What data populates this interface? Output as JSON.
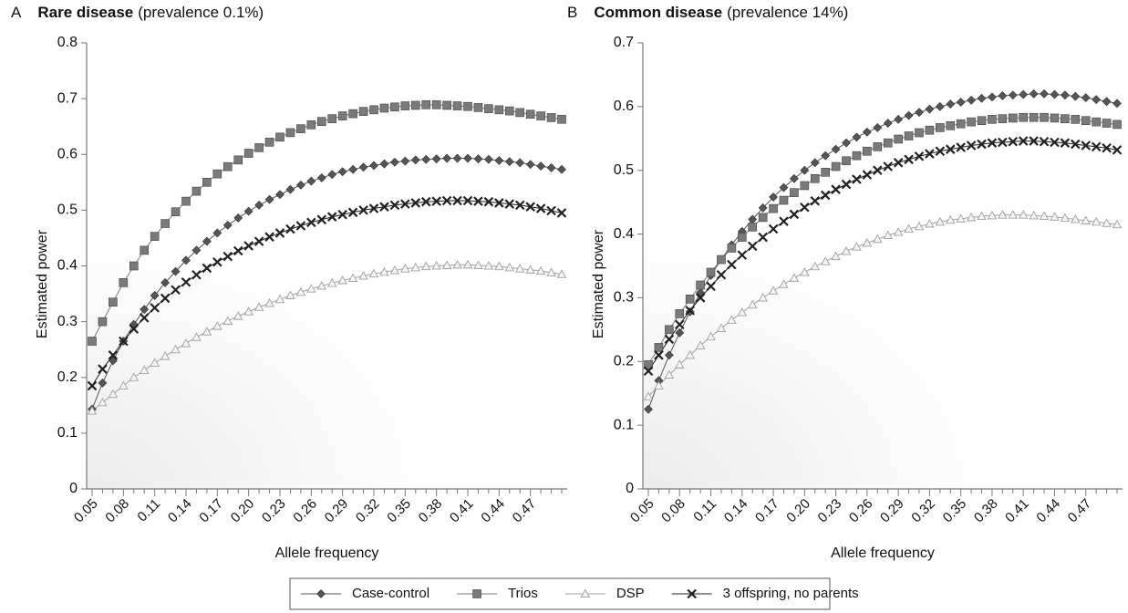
{
  "chart_data": [
    {
      "type": "line",
      "panel": "A",
      "title": "Rare disease",
      "subtitle": "(prevalence 0.1%)",
      "x_label": "Allele frequency",
      "y_label": "Estimated power",
      "categories": [
        "0.05",
        null,
        null,
        "0.08",
        null,
        null,
        "0.11",
        null,
        null,
        "0.14",
        null,
        null,
        "0.17",
        null,
        null,
        "0.20",
        null,
        null,
        "0.23",
        null,
        null,
        "0.26",
        null,
        null,
        "0.29",
        null,
        null,
        "0.32",
        null,
        null,
        "0.35",
        null,
        null,
        "0.38",
        null,
        null,
        "0.41",
        null,
        null,
        "0.44",
        null,
        null,
        "0.47",
        null,
        null,
        null
      ],
      "ylim": [
        0,
        0.8
      ],
      "yticks": [
        0,
        0.1,
        0.2,
        0.3,
        0.4,
        0.5,
        0.6,
        0.7,
        0.8
      ],
      "series": [
        {
          "name": "Case-control",
          "color": "#555555",
          "marker": "diamond",
          "values": [
            0.143,
            0.19,
            0.23,
            0.265,
            0.295,
            0.322,
            0.347,
            0.37,
            0.39,
            0.41,
            0.428,
            0.444,
            0.459,
            0.473,
            0.486,
            0.498,
            0.509,
            0.519,
            0.528,
            0.537,
            0.545,
            0.552,
            0.558,
            0.564,
            0.569,
            0.573,
            0.577,
            0.58,
            0.583,
            0.586,
            0.588,
            0.59,
            0.591,
            0.592,
            0.593,
            0.593,
            0.593,
            0.592,
            0.591,
            0.589,
            0.587,
            0.585,
            0.582,
            0.579,
            0.576,
            0.573
          ]
        },
        {
          "name": "Trios",
          "color": "#7a7a7a",
          "marker": "square",
          "values": [
            0.265,
            0.3,
            0.335,
            0.37,
            0.4,
            0.428,
            0.453,
            0.476,
            0.497,
            0.516,
            0.534,
            0.55,
            0.565,
            0.578,
            0.59,
            0.602,
            0.612,
            0.622,
            0.631,
            0.639,
            0.646,
            0.653,
            0.659,
            0.664,
            0.669,
            0.673,
            0.677,
            0.68,
            0.683,
            0.685,
            0.687,
            0.688,
            0.689,
            0.689,
            0.688,
            0.687,
            0.686,
            0.684,
            0.682,
            0.68,
            0.678,
            0.675,
            0.672,
            0.669,
            0.666,
            0.663
          ]
        },
        {
          "name": "DSP",
          "color": "#a0a0a0",
          "marker": "triangle",
          "values": [
            0.14,
            0.155,
            0.17,
            0.185,
            0.2,
            0.213,
            0.226,
            0.238,
            0.25,
            0.261,
            0.272,
            0.282,
            0.292,
            0.301,
            0.31,
            0.318,
            0.326,
            0.333,
            0.34,
            0.347,
            0.353,
            0.359,
            0.364,
            0.369,
            0.374,
            0.378,
            0.382,
            0.386,
            0.389,
            0.392,
            0.395,
            0.397,
            0.399,
            0.4,
            0.401,
            0.402,
            0.402,
            0.401,
            0.4,
            0.399,
            0.397,
            0.395,
            0.393,
            0.391,
            0.388,
            0.385
          ]
        },
        {
          "name": "3 offspring, no parents",
          "color": "#222222",
          "marker": "x",
          "values": [
            0.185,
            0.215,
            0.24,
            0.265,
            0.287,
            0.307,
            0.325,
            0.342,
            0.357,
            0.371,
            0.384,
            0.396,
            0.407,
            0.417,
            0.427,
            0.436,
            0.444,
            0.452,
            0.459,
            0.466,
            0.472,
            0.478,
            0.483,
            0.488,
            0.492,
            0.496,
            0.5,
            0.503,
            0.506,
            0.509,
            0.511,
            0.513,
            0.515,
            0.516,
            0.517,
            0.517,
            0.517,
            0.516,
            0.515,
            0.513,
            0.511,
            0.509,
            0.506,
            0.503,
            0.499,
            0.495
          ]
        }
      ]
    },
    {
      "type": "line",
      "panel": "B",
      "title": "Common disease",
      "subtitle": "(prevalence 14%)",
      "x_label": "Allele frequency",
      "y_label": "Estimated power",
      "categories": [
        "0.05",
        null,
        null,
        "0.08",
        null,
        null,
        "0.11",
        null,
        null,
        "0.14",
        null,
        null,
        "0.17",
        null,
        null,
        "0.20",
        null,
        null,
        "0.23",
        null,
        null,
        "0.26",
        null,
        null,
        "0.29",
        null,
        null,
        "0.32",
        null,
        null,
        "0.35",
        null,
        null,
        "0.38",
        null,
        null,
        "0.41",
        null,
        null,
        "0.44",
        null,
        null,
        "0.47",
        null,
        null,
        null
      ],
      "ylim": [
        0,
        0.7
      ],
      "yticks": [
        0,
        0.1,
        0.2,
        0.3,
        0.4,
        0.5,
        0.6,
        0.7
      ],
      "series": [
        {
          "color": "#555555",
          "marker": "diamond",
          "values": [
            0.125,
            0.17,
            0.21,
            0.245,
            0.278,
            0.308,
            0.335,
            0.36,
            0.383,
            0.404,
            0.423,
            0.441,
            0.458,
            0.473,
            0.487,
            0.5,
            0.512,
            0.523,
            0.533,
            0.543,
            0.552,
            0.56,
            0.567,
            0.574,
            0.58,
            0.586,
            0.591,
            0.596,
            0.6,
            0.604,
            0.607,
            0.61,
            0.613,
            0.615,
            0.617,
            0.618,
            0.619,
            0.62,
            0.62,
            0.619,
            0.618,
            0.616,
            0.614,
            0.611,
            0.608,
            0.605
          ]
        },
        {
          "color": "#7a7a7a",
          "marker": "square",
          "values": [
            0.195,
            0.222,
            0.25,
            0.275,
            0.298,
            0.32,
            0.34,
            0.36,
            0.378,
            0.395,
            0.411,
            0.426,
            0.44,
            0.453,
            0.465,
            0.476,
            0.487,
            0.497,
            0.506,
            0.515,
            0.523,
            0.53,
            0.537,
            0.543,
            0.549,
            0.554,
            0.559,
            0.563,
            0.567,
            0.57,
            0.573,
            0.576,
            0.578,
            0.58,
            0.581,
            0.582,
            0.583,
            0.583,
            0.583,
            0.582,
            0.581,
            0.58,
            0.578,
            0.576,
            0.574,
            0.572
          ]
        },
        {
          "color": "#a0a0a0",
          "marker": "triangle",
          "values": [
            0.145,
            0.162,
            0.179,
            0.195,
            0.21,
            0.225,
            0.239,
            0.252,
            0.265,
            0.277,
            0.289,
            0.3,
            0.311,
            0.321,
            0.331,
            0.34,
            0.349,
            0.357,
            0.365,
            0.373,
            0.38,
            0.386,
            0.392,
            0.398,
            0.403,
            0.408,
            0.412,
            0.416,
            0.419,
            0.422,
            0.424,
            0.426,
            0.428,
            0.429,
            0.43,
            0.43,
            0.43,
            0.429,
            0.428,
            0.427,
            0.425,
            0.423,
            0.421,
            0.419,
            0.417,
            0.415
          ]
        },
        {
          "color": "#222222",
          "marker": "x",
          "values": [
            0.185,
            0.21,
            0.235,
            0.258,
            0.28,
            0.3,
            0.318,
            0.336,
            0.352,
            0.367,
            0.381,
            0.395,
            0.408,
            0.42,
            0.431,
            0.442,
            0.452,
            0.461,
            0.47,
            0.478,
            0.486,
            0.493,
            0.5,
            0.506,
            0.512,
            0.517,
            0.522,
            0.526,
            0.53,
            0.533,
            0.536,
            0.539,
            0.541,
            0.543,
            0.544,
            0.545,
            0.546,
            0.546,
            0.545,
            0.544,
            0.543,
            0.541,
            0.539,
            0.537,
            0.535,
            0.532
          ]
        }
      ]
    }
  ]
}
